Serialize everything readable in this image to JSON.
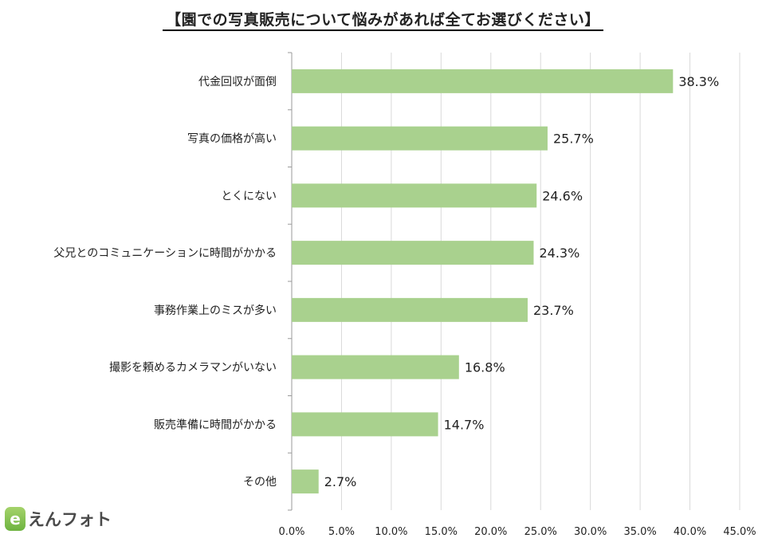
{
  "title": "【園での写真販売について悩みがあれば全てお選びください】",
  "logo": {
    "mark": "e",
    "text": "えんフォト"
  },
  "chart_data": {
    "type": "bar",
    "orientation": "horizontal",
    "title": "【園での写真販売について悩みがあれば全てお選びください】",
    "categories": [
      "代金回収が面倒",
      "写真の価格が高い",
      "とくにない",
      "父兄とのコミュニケーションに時間がかかる",
      "事務作業上のミスが多い",
      "撮影を頼めるカメラマンがいない",
      "販売準備に時間がかかる",
      "その他"
    ],
    "values": [
      38.3,
      25.7,
      24.6,
      24.3,
      23.7,
      16.8,
      14.7,
      2.7
    ],
    "value_labels": [
      "38.3%",
      "25.7%",
      "24.6%",
      "24.3%",
      "23.7%",
      "16.8%",
      "14.7%",
      "2.7%"
    ],
    "xlim": [
      0,
      45
    ],
    "x_ticks": [
      "0.0%",
      "5.0%",
      "10.0%",
      "15.0%",
      "20.0%",
      "25.0%",
      "30.0%",
      "35.0%",
      "40.0%",
      "45.0%"
    ],
    "x_tick_values": [
      0,
      5,
      10,
      15,
      20,
      25,
      30,
      35,
      40,
      45
    ],
    "grid": true,
    "bar_color": "#a9d18e",
    "grid_color": "#d9d9d9"
  }
}
